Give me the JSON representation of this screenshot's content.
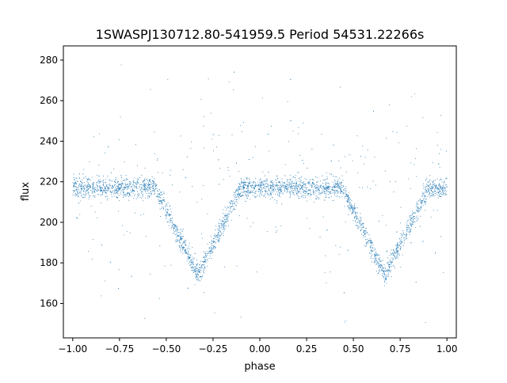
{
  "chart_data": {
    "type": "scatter",
    "title": "1SWASPJ130712.80-541959.5 Period 54531.22266s",
    "xlabel": "phase",
    "ylabel": "flux",
    "xlim": [
      -1.05,
      1.05
    ],
    "ylim": [
      143,
      287
    ],
    "x_ticks": [
      -1.0,
      -0.75,
      -0.5,
      -0.25,
      0.0,
      0.25,
      0.5,
      0.75,
      1.0
    ],
    "x_tick_labels": [
      "−1.00",
      "−0.75",
      "−0.50",
      "−0.25",
      "0.00",
      "0.25",
      "0.50",
      "0.75",
      "1.00"
    ],
    "y_ticks": [
      160,
      180,
      200,
      220,
      240,
      260,
      280
    ],
    "y_tick_labels": [
      "160",
      "180",
      "200",
      "220",
      "240",
      "260",
      "280"
    ],
    "grid": false,
    "legend": "none",
    "marker_color": "#1f77b4",
    "x_range": [
      -1.0,
      1.0
    ],
    "baseline_flux": 217,
    "eclipses": [
      {
        "phase_center": -0.33,
        "phase_width": 0.23,
        "min_flux": 174
      },
      {
        "phase_center": 0.67,
        "phase_width": 0.23,
        "min_flux": 174
      }
    ]
  }
}
